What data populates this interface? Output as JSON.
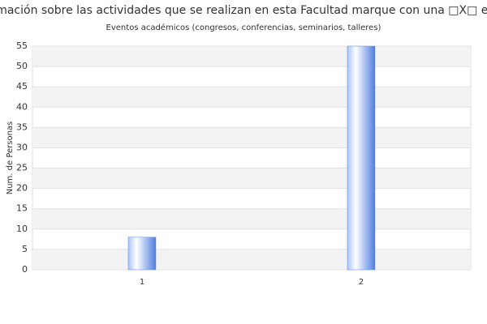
{
  "chart_data": {
    "type": "bar",
    "title": "formación sobre las actividades que se realizan en esta Facultad marque con una □X□ el te",
    "subtitle": "Eventos académicos (congresos, conferencias, seminarios, talleres)",
    "y_label": "Num. de Personas",
    "categories": [
      "1",
      "2"
    ],
    "values": [
      8,
      55
    ],
    "color": "#5b86e5",
    "ylim": [
      0,
      55
    ],
    "yticks": [
      0,
      5,
      10,
      15,
      20,
      25,
      30,
      35,
      40,
      45,
      50,
      55
    ],
    "grid": true
  }
}
